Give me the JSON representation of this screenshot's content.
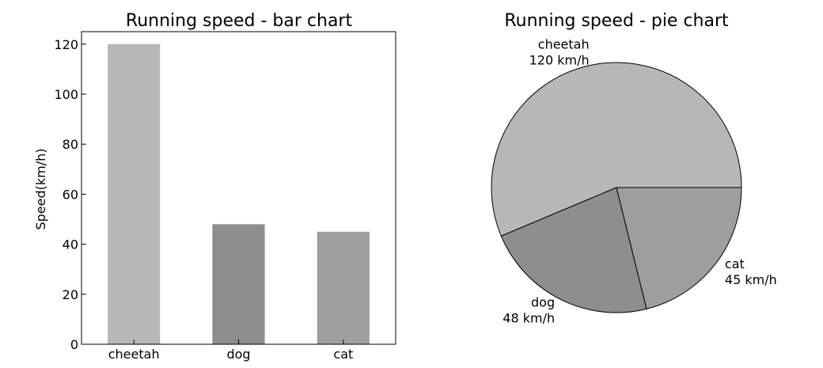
{
  "chart_data": [
    {
      "type": "bar",
      "title": "Running speed - bar chart",
      "xlabel": "",
      "ylabel": "Speed(km/h)",
      "categories": [
        "cheetah",
        "dog",
        "cat"
      ],
      "values": [
        120,
        48,
        45
      ],
      "ylim": [
        0,
        125
      ],
      "yticks": [
        0,
        20,
        40,
        60,
        80,
        100,
        120
      ],
      "colors": [
        "#b7b7b7",
        "#8e8e8e",
        "#9e9e9e"
      ],
      "grid": false
    },
    {
      "type": "pie",
      "title": "Running speed - pie chart",
      "categories": [
        "cheetah",
        "dog",
        "cat"
      ],
      "values": [
        120,
        48,
        45
      ],
      "labels": [
        [
          "cheetah",
          "120 km/h"
        ],
        [
          "dog",
          "48 km/h"
        ],
        [
          "cat",
          "45 km/h"
        ]
      ],
      "colors": [
        "#b7b7b7",
        "#8e8e8e",
        "#9e9e9e"
      ]
    }
  ]
}
